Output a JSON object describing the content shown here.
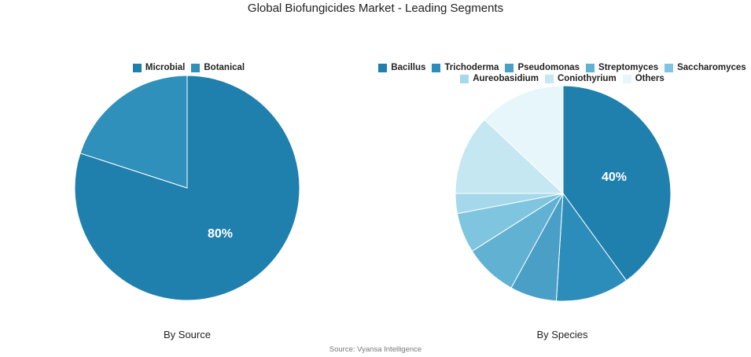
{
  "title": "Global Biofungicides Market - Leading Segments",
  "source": "Source: Vyansa Intelligence",
  "chart_data": [
    {
      "type": "pie",
      "subtitle": "By Source",
      "legend_position": "top",
      "slices": [
        {
          "label": "Microbial",
          "value": 80,
          "color": "#1f7fad",
          "shown_label": "80%"
        },
        {
          "label": "Botanical",
          "value": 20,
          "color": "#2f90bb",
          "shown_label": ""
        }
      ]
    },
    {
      "type": "pie",
      "subtitle": "By Species",
      "legend_position": "top",
      "slices": [
        {
          "label": "Bacillus",
          "value": 40,
          "color": "#1f7fad",
          "shown_label": "40%"
        },
        {
          "label": "Trichoderma",
          "value": 11,
          "color": "#2d8dba",
          "shown_label": ""
        },
        {
          "label": "Pseudomonas",
          "value": 7,
          "color": "#4a9fc7",
          "shown_label": ""
        },
        {
          "label": "Streptomyces",
          "value": 8,
          "color": "#61b1d3",
          "shown_label": ""
        },
        {
          "label": "Saccharomyces",
          "value": 6,
          "color": "#80c5df",
          "shown_label": ""
        },
        {
          "label": "Aureobasidium",
          "value": 3,
          "color": "#a4d8ea",
          "shown_label": ""
        },
        {
          "label": "Coniothyrium",
          "value": 12,
          "color": "#c4e7f1",
          "shown_label": ""
        },
        {
          "label": "Others",
          "value": 13,
          "color": "#e6f6fa",
          "shown_label": ""
        }
      ]
    }
  ]
}
